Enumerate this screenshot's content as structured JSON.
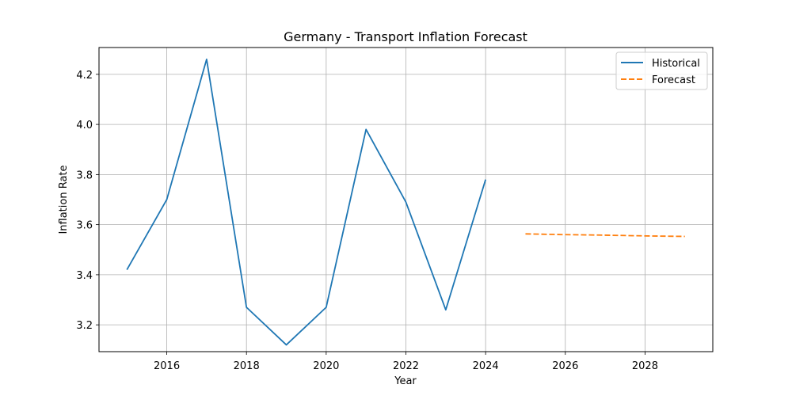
{
  "chart_data": {
    "type": "line",
    "title": "Germany - Transport Inflation Forecast",
    "xlabel": "Year",
    "ylabel": "Inflation Rate",
    "xlim": [
      2014.3,
      2029.7
    ],
    "ylim": [
      3.093,
      4.307
    ],
    "x_ticks": [
      2016,
      2018,
      2020,
      2022,
      2024,
      2026,
      2028
    ],
    "y_ticks": [
      3.2,
      3.4,
      3.6,
      3.8,
      4.0,
      4.2
    ],
    "y_tick_labels": [
      "3.2",
      "3.4",
      "3.6",
      "3.8",
      "4.0",
      "4.2"
    ],
    "grid": true,
    "legend_position": "top-right",
    "series": [
      {
        "name": "Historical",
        "style": "solid",
        "color": "#1f77b4",
        "x": [
          2015,
          2016,
          2017,
          2018,
          2019,
          2020,
          2021,
          2022,
          2023,
          2024
        ],
        "y": [
          3.42,
          3.7,
          4.26,
          3.27,
          3.12,
          3.27,
          3.98,
          3.69,
          3.26,
          3.78
        ]
      },
      {
        "name": "Forecast",
        "style": "dashed",
        "color": "#ff7f0e",
        "x": [
          2025,
          2026,
          2027,
          2028,
          2029
        ],
        "y": [
          3.563,
          3.56,
          3.558,
          3.555,
          3.553
        ]
      }
    ]
  }
}
